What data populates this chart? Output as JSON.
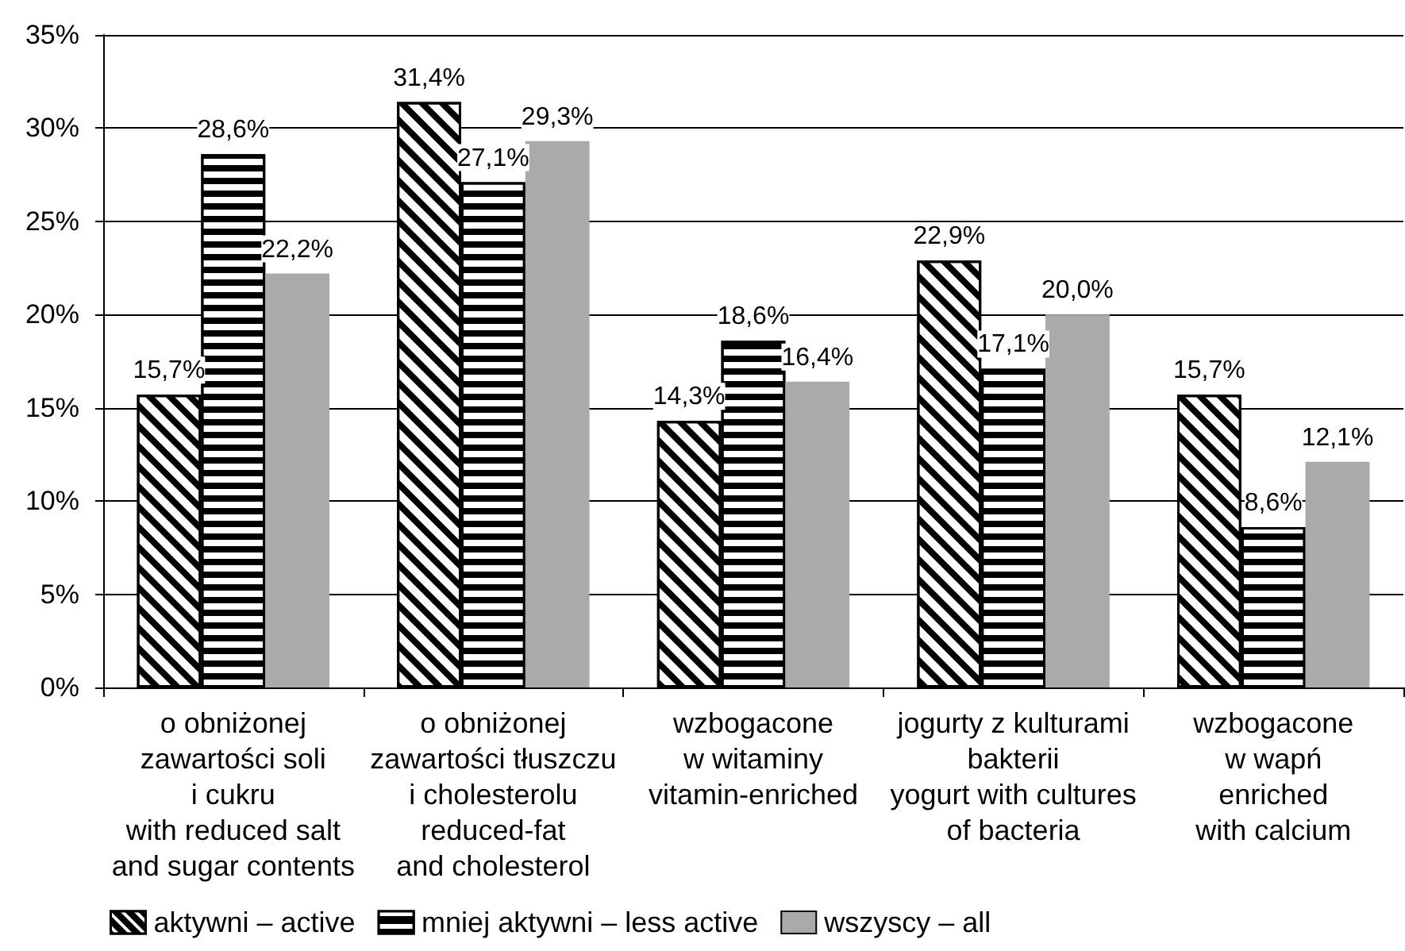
{
  "chart_data": {
    "type": "bar",
    "categories": [
      "o obniżonej\nzawartości soli\ni cukru\nwith reduced salt\nand sugar contents",
      "o obniżonej\nzawartości tłuszczu\ni cholesterolu\nreduced-fat\nand cholesterol",
      "wzbogacone\nw witaminy\nvitamin-enriched",
      "jogurty z kulturami\nbakterii\nyogurt with cultures\nof bacteria",
      "wzbogacone\nw wapń\nenriched\nwith calcium"
    ],
    "series": [
      {
        "name": "aktywni – active",
        "color": "#000000",
        "values": [
          15.7,
          31.4,
          14.3,
          22.9,
          15.7
        ],
        "value_labels": [
          "15,7%",
          "31,4%",
          "14,3%",
          "22,9%",
          "15,7%"
        ]
      },
      {
        "name": "mniej aktywni – less active",
        "color": "#000000",
        "values": [
          28.6,
          27.1,
          18.6,
          17.1,
          8.6
        ],
        "value_labels": [
          "28,6%",
          "27,1%",
          "18,6%",
          "17,1%",
          "8,6%"
        ]
      },
      {
        "name": "wszyscy – all",
        "color": "#aaaaaa",
        "values": [
          22.2,
          29.3,
          16.4,
          20.0,
          12.1
        ],
        "value_labels": [
          "22,2%",
          "29,3%",
          "16,4%",
          "20,0%",
          "12,1%"
        ]
      }
    ],
    "ylim": [
      0,
      35
    ],
    "yticks": [
      {
        "value": 0,
        "label": "0%"
      },
      {
        "value": 5,
        "label": "5%"
      },
      {
        "value": 10,
        "label": "10%"
      },
      {
        "value": 15,
        "label": "15%"
      },
      {
        "value": 20,
        "label": "20%"
      },
      {
        "value": 25,
        "label": "25%"
      },
      {
        "value": 30,
        "label": "30%"
      },
      {
        "value": 35,
        "label": "35%"
      }
    ],
    "grid": "y",
    "legend": "bottom left"
  }
}
